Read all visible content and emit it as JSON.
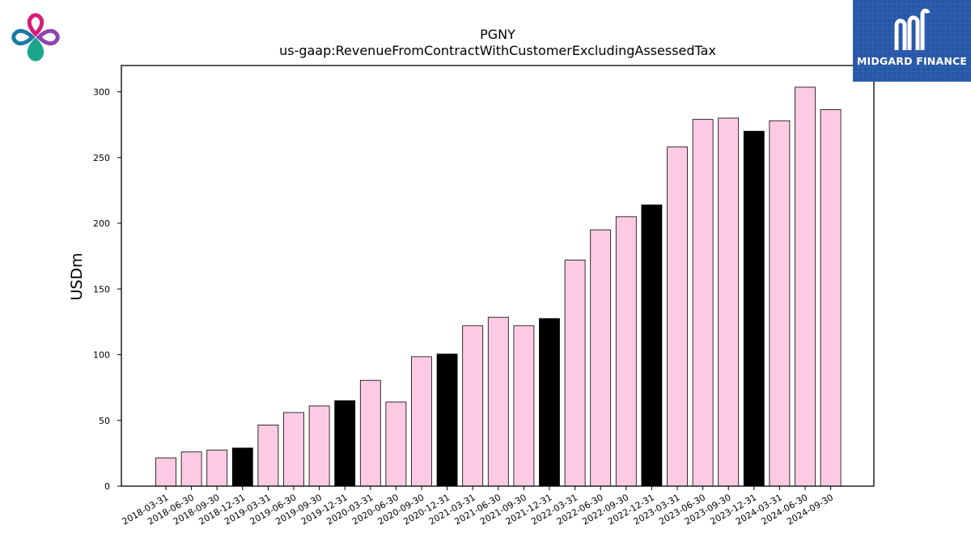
{
  "chart_data": {
    "type": "bar",
    "title": "PGNY",
    "subtitle": "us-gaap:RevenueFromContractWithCustomerExcludingAssessedTax",
    "xlabel": "",
    "ylabel": "USDm",
    "ylim": [
      0,
      320
    ],
    "yticks": [
      0,
      50,
      100,
      150,
      200,
      250,
      300
    ],
    "grid": false,
    "categories": [
      "2018-03-31",
      "2018-06-30",
      "2018-09-30",
      "2018-12-31",
      "2019-03-31",
      "2019-06-30",
      "2019-09-30",
      "2019-12-31",
      "2020-03-31",
      "2020-06-30",
      "2020-09-30",
      "2020-12-31",
      "2021-03-31",
      "2021-06-30",
      "2021-09-30",
      "2021-12-31",
      "2022-03-31",
      "2022-06-30",
      "2022-09-30",
      "2022-12-31",
      "2023-03-31",
      "2023-06-30",
      "2023-09-30",
      "2023-12-31",
      "2024-03-31",
      "2024-06-30",
      "2024-09-30"
    ],
    "values": [
      21.5,
      26,
      27.5,
      29,
      46.5,
      56,
      61,
      65,
      80.5,
      64,
      98.5,
      100.5,
      122,
      128.5,
      122,
      127.5,
      172,
      195,
      205,
      214,
      258,
      279,
      280,
      270,
      278,
      303.5,
      286.5
    ],
    "colors": {
      "quarter": "#fccbe3",
      "year_end": "#000000",
      "edge": "#000000"
    }
  },
  "branding": {
    "name": "MIDGARD FINANCE",
    "box_color": "#2757a8",
    "logo_icon": "four-petal-pin-logo",
    "logo_colors": [
      "#d81b7a",
      "#8e44ad",
      "#1aa68a",
      "#1a7aa6"
    ]
  }
}
